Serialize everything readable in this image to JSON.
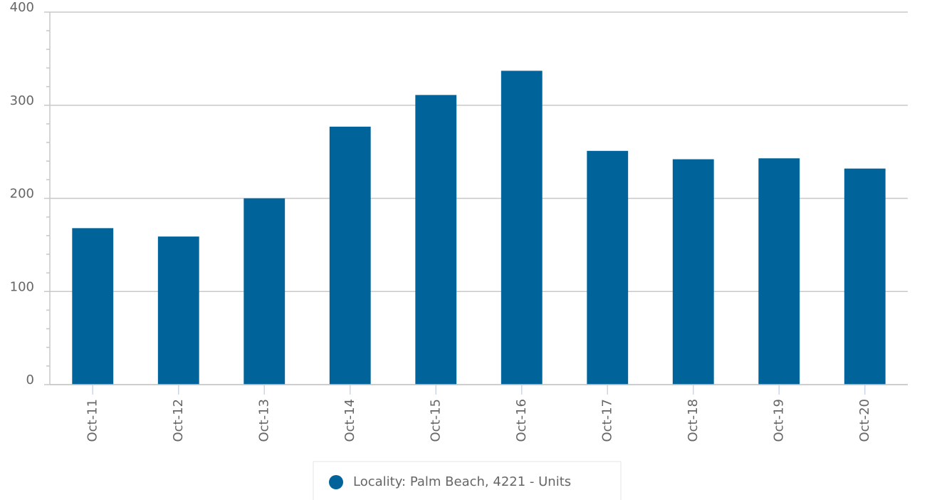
{
  "chart_data": {
    "type": "bar",
    "categories": [
      "Oct-11",
      "Oct-12",
      "Oct-13",
      "Oct-14",
      "Oct-15",
      "Oct-16",
      "Oct-17",
      "Oct-18",
      "Oct-19",
      "Oct-20"
    ],
    "series": [
      {
        "name": "Locality: Palm Beach, 4221 - Units",
        "color": "#00649a",
        "values": [
          168,
          159,
          200,
          277,
          311,
          337,
          251,
          242,
          243,
          232
        ]
      }
    ],
    "ylim": [
      0,
      400
    ],
    "yticks": [
      0,
      100,
      200,
      300,
      400
    ],
    "minor_yticks": [
      20,
      40,
      60,
      80,
      120,
      140,
      160,
      180,
      220,
      240,
      260,
      280,
      320,
      340,
      360,
      380
    ],
    "grid": true,
    "legend": "bottom"
  }
}
